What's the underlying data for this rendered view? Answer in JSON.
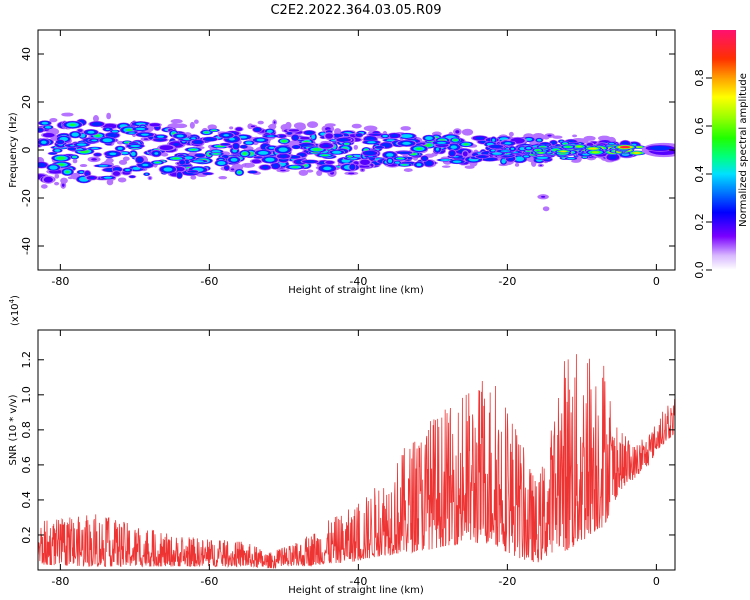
{
  "title": "C2E2.2022.364.03.05.R09",
  "chart_data": [
    {
      "type": "heatmap",
      "xlabel": "Height of straight line (km)",
      "ylabel": "Frequency (Hz)",
      "xlim": [
        -83,
        2.5
      ],
      "ylim": [
        -50,
        50
      ],
      "xticks": [
        -80,
        -60,
        -40,
        -20,
        0
      ],
      "yticks": [
        -40,
        -20,
        0,
        20,
        40
      ],
      "description_band": "energy concentrated near 0 Hz, spread roughly -12 to +12 Hz at -80 km narrowing to about +/-2 Hz near 0 km, strongest near -5 km",
      "colorbar": {
        "label": "Normalized spectral amplitude",
        "range": [
          0,
          1
        ],
        "ticks": [
          "0.0",
          "0.2",
          "0.4",
          "0.6",
          "0.8"
        ]
      }
    },
    {
      "type": "line",
      "xlabel": "Height of straight line (km)",
      "ylabel": "SNR (10 * v/v)",
      "exponent_label": "(x10",
      "exponent_power": "4",
      "exponent_close": ")",
      "xlim": [
        -83,
        2.5
      ],
      "ylim": [
        0,
        1.37
      ],
      "xticks": [
        -80,
        -60,
        -40,
        -20,
        0
      ],
      "yticks": [
        "0.2",
        "0.4",
        "0.6",
        "0.8",
        "1.0",
        "1.2"
      ],
      "line_color": "#ee3333",
      "envelope": {
        "x": [
          -83,
          -75,
          -65,
          -55,
          -52,
          -48,
          -45,
          -40,
          -37,
          -33,
          -30,
          -28,
          -25,
          -22,
          -20,
          -18,
          -16,
          -14,
          -13,
          -12,
          -10,
          -9,
          -7,
          -6,
          -5,
          -3,
          -1,
          0,
          1,
          2.5
        ],
        "base": [
          0.03,
          0.02,
          0.02,
          0.02,
          0.01,
          0.02,
          0.03,
          0.05,
          0.08,
          0.1,
          0.12,
          0.14,
          0.15,
          0.15,
          0.1,
          0.06,
          0.04,
          0.1,
          0.14,
          0.1,
          0.15,
          0.2,
          0.25,
          0.35,
          0.45,
          0.52,
          0.6,
          0.68,
          0.72,
          0.78
        ],
        "peak": [
          0.28,
          0.32,
          0.2,
          0.16,
          0.1,
          0.16,
          0.26,
          0.38,
          0.52,
          0.75,
          0.9,
          0.92,
          1.05,
          1.12,
          1.0,
          0.72,
          0.5,
          0.85,
          1.05,
          1.35,
          1.2,
          1.3,
          1.25,
          0.9,
          0.8,
          0.72,
          0.78,
          0.85,
          0.92,
          0.98
        ]
      }
    }
  ]
}
